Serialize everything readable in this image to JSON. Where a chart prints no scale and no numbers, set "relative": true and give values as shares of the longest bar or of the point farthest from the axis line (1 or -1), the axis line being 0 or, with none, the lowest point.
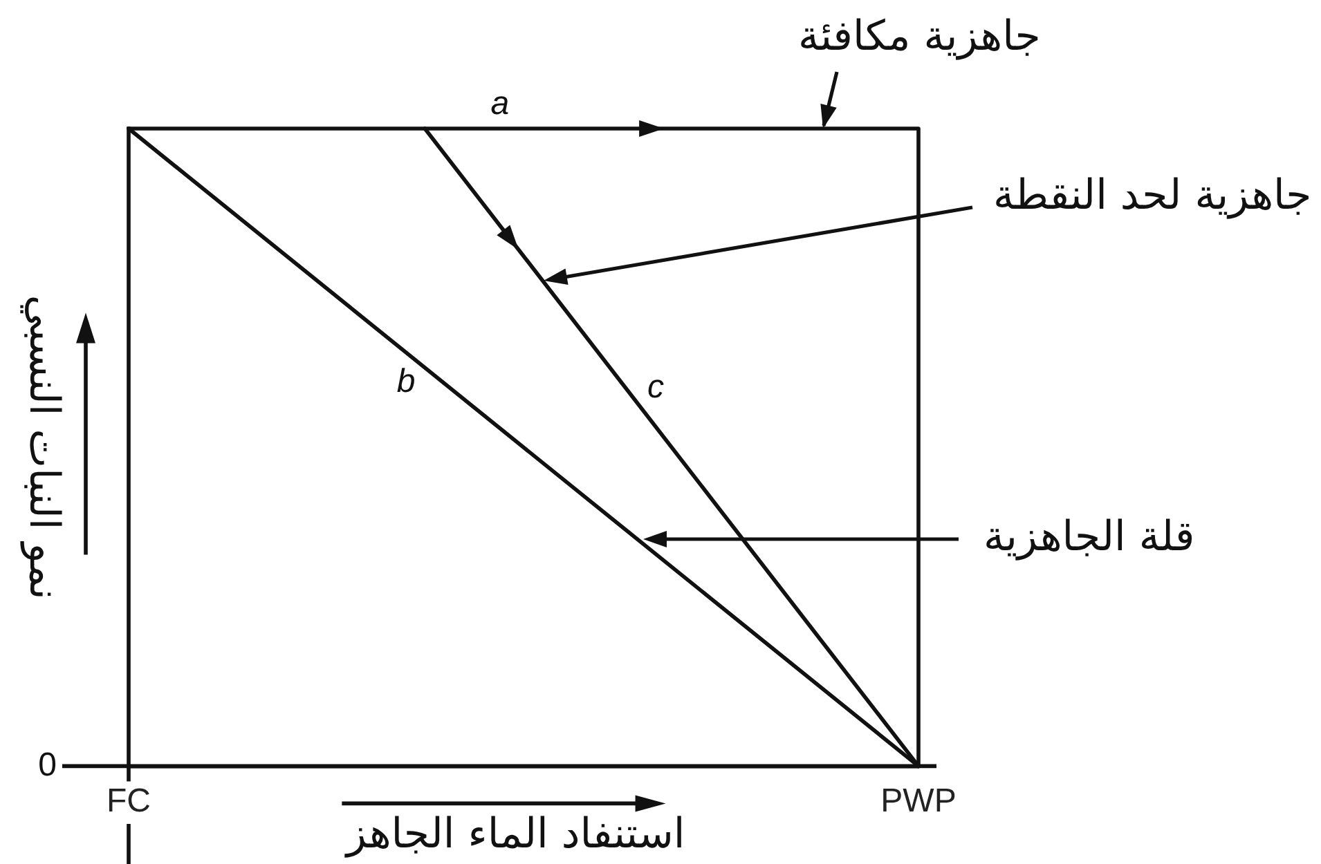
{
  "chart_data": {
    "type": "line",
    "xlabel": "استنفاد الماء الجاهز",
    "ylabel": "نمو النبات النسبي",
    "relative": true,
    "categories": [
      "FC",
      null,
      null,
      null,
      null,
      null,
      null,
      null,
      "PWP"
    ],
    "series": [
      {
        "name": "a",
        "color": "#111111",
        "x": [
          "FC",
          "PWP",
          "PWP"
        ],
        "values": [
          1,
          1,
          0
        ]
      },
      {
        "name": "b",
        "color": "#111111",
        "x": [
          "FC",
          "PWP"
        ],
        "values": [
          1,
          0
        ]
      },
      {
        "name": "c",
        "color": "#111111",
        "values": [
          null,
          null,
          null,
          1,
          0.8,
          0.6,
          0.4,
          0.2,
          0
        ]
      }
    ],
    "annotations": [
      "0",
      "جاهزية مكافئة",
      "جاهزية لحد النقطة",
      "قلة الجاهزية"
    ],
    "marker": "none",
    "line_style": "solid",
    "legend": false
  }
}
